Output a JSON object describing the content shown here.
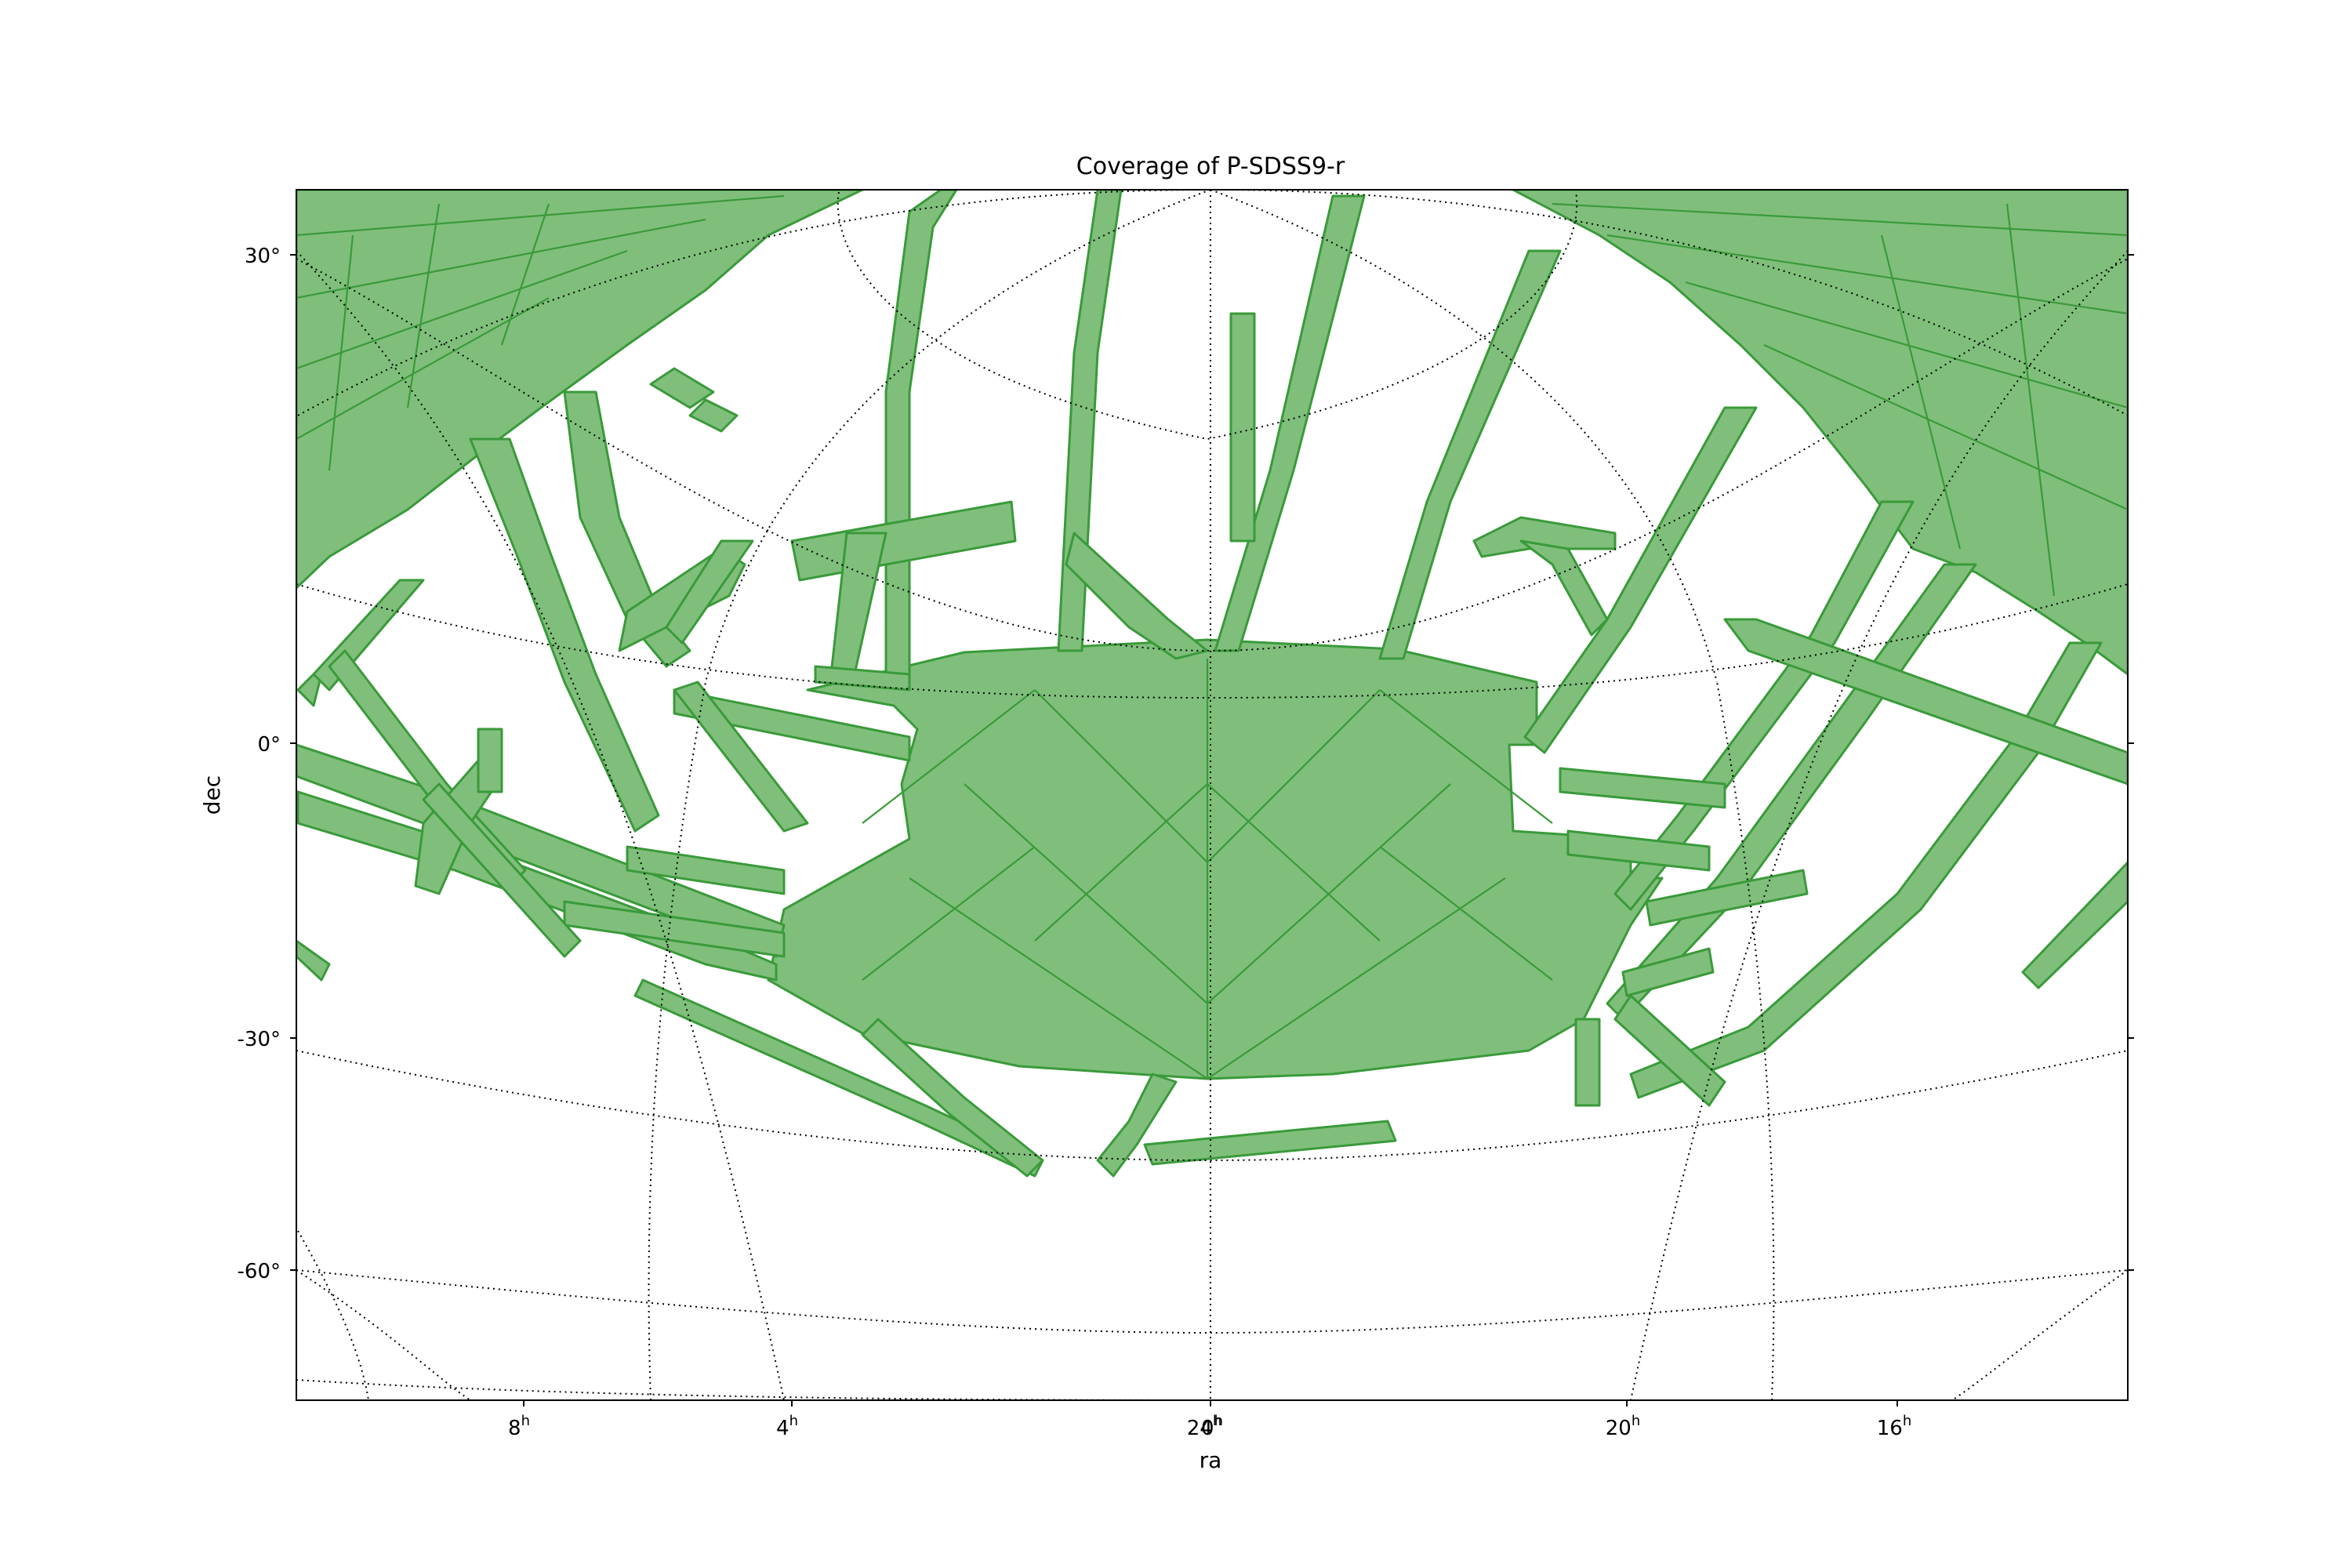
{
  "title": "Coverage of P-SDSS9-r",
  "xlabel": "ra",
  "ylabel": "dec",
  "colors": {
    "coverage_fill": "#7fbf7b",
    "coverage_edge": "#3a9a3a",
    "grid": "#000000"
  },
  "x_ticks": [
    {
      "value": "8",
      "sup": "h"
    },
    {
      "value": "4",
      "sup": "h"
    },
    {
      "value": "0",
      "sup": "h"
    },
    {
      "value": "24",
      "sup": "h"
    },
    {
      "value": "20",
      "sup": "h"
    },
    {
      "value": "16",
      "sup": "h"
    }
  ],
  "y_ticks": [
    "30°",
    "0°",
    "-30°",
    "-60°"
  ],
  "chart_data": {
    "type": "map",
    "title": "Coverage of P-SDSS9-r",
    "xlabel": "ra",
    "ylabel": "dec",
    "grid": true,
    "dec_ticks_deg": [
      30,
      0,
      -30,
      -60
    ],
    "ra_ticks": [
      "8h",
      "4h",
      "0h",
      "24h",
      "20h",
      "16h"
    ],
    "series": [
      {
        "values": "coverage regions (HEALPix MOC cells)"
      }
    ]
  }
}
